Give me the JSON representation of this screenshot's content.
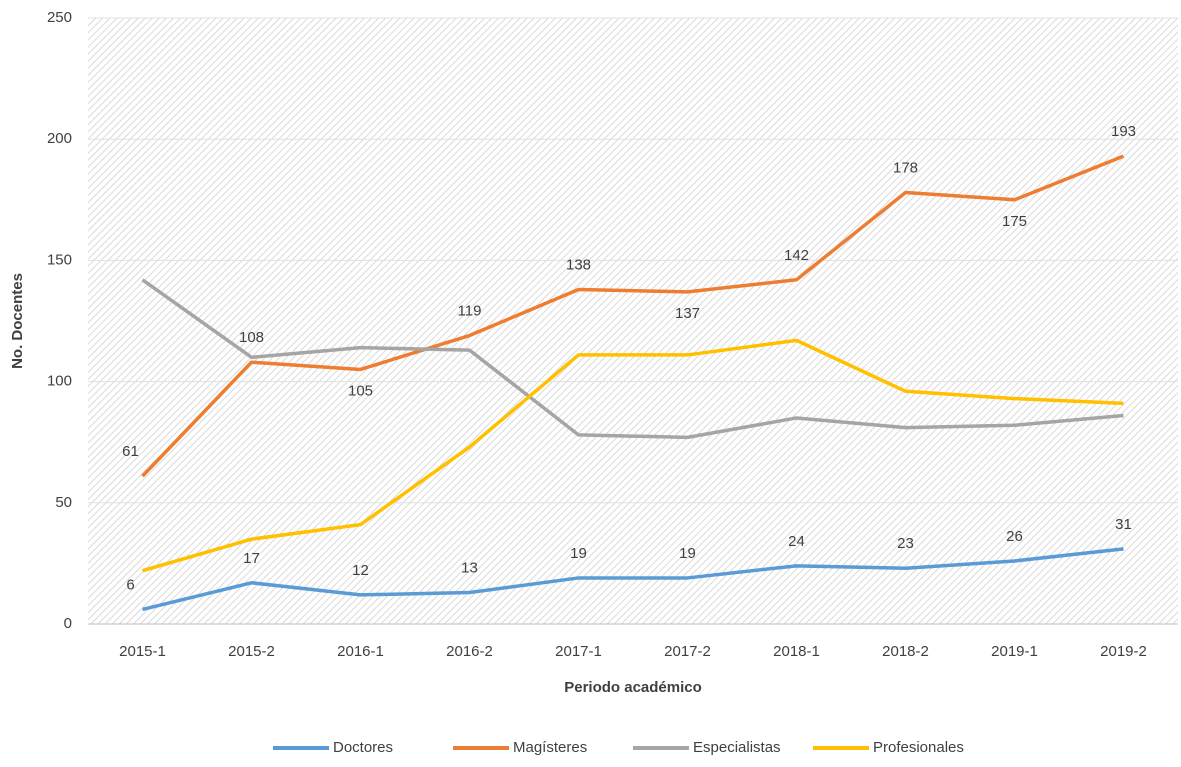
{
  "chart_data": {
    "type": "line",
    "categories": [
      "2015-1",
      "2015-2",
      "2016-1",
      "2016-2",
      "2017-1",
      "2017-2",
      "2018-1",
      "2018-2",
      "2019-1",
      "2019-2"
    ],
    "series": [
      {
        "name": "Doctores",
        "color": "#5b9bd5",
        "data_labels": true,
        "values": [
          6,
          17,
          12,
          13,
          19,
          19,
          24,
          23,
          26,
          31
        ]
      },
      {
        "name": "Magísteres",
        "color": "#ed7d31",
        "data_labels": true,
        "values": [
          61,
          108,
          105,
          119,
          138,
          137,
          142,
          178,
          175,
          193
        ]
      },
      {
        "name": "Especialistas",
        "color": "#a5a5a5",
        "data_labels": false,
        "values": [
          142,
          110,
          114,
          113,
          78,
          77,
          85,
          81,
          82,
          86
        ]
      },
      {
        "name": "Profesionales",
        "color": "#ffc000",
        "data_labels": false,
        "values": [
          22,
          35,
          41,
          73,
          111,
          111,
          117,
          96,
          93,
          91
        ]
      }
    ],
    "xlabel": "Periodo académico",
    "ylabel": "No. Docentes",
    "ylim": [
      0,
      250
    ],
    "yticks": [
      0,
      50,
      100,
      150,
      200,
      250
    ],
    "grid": true,
    "legend": "bottom"
  }
}
